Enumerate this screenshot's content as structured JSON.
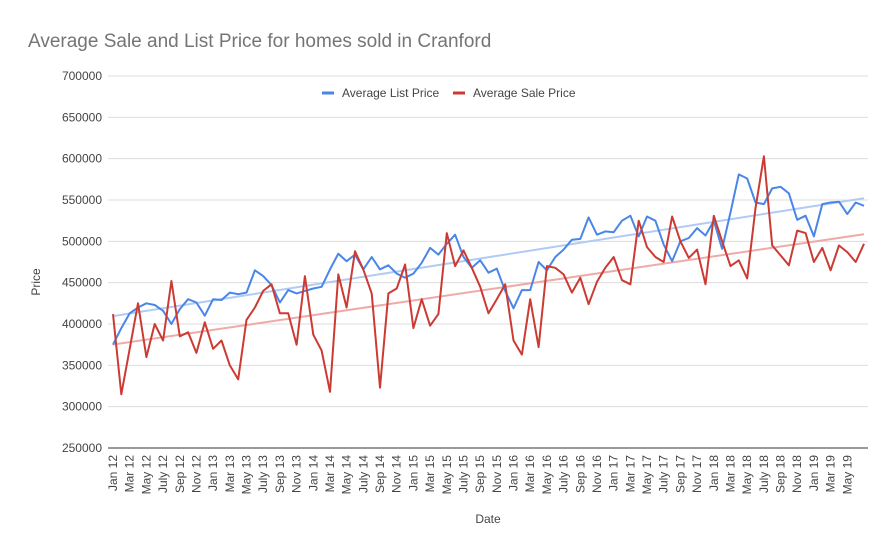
{
  "chart_data": {
    "type": "line",
    "title": "Average Sale and List Price for homes sold in Cranford",
    "x_label": "Date",
    "y_label": "Price",
    "categories": [
      "Jan 12",
      null,
      "Mar 12",
      null,
      "May 12",
      null,
      "July 12",
      null,
      "Sep 12",
      null,
      "Nov 12",
      null,
      "Jan 13",
      null,
      "Mar 13",
      null,
      "May 13",
      null,
      "July 13",
      null,
      "Sep 13",
      null,
      "Nov 13",
      null,
      "Jan 14",
      null,
      "Mar 14",
      null,
      "May 14",
      null,
      "July 14",
      null,
      "Sep 14",
      null,
      "Nov 14",
      null,
      "Jan 15",
      null,
      "Mar 15",
      null,
      "May 15",
      null,
      "July 15",
      null,
      "Sep 15",
      null,
      "Nov 15",
      null,
      "Jan 16",
      null,
      "Mar 16",
      null,
      "May 16",
      null,
      "July 16",
      null,
      "Sep 16",
      null,
      "Nov 16",
      null,
      "Jan 17",
      null,
      "Mar 17",
      null,
      "May 17",
      null,
      "July 17",
      null,
      "Sep 17",
      null,
      "Nov 17",
      null,
      "Jan 18",
      null,
      "Mar 18",
      null,
      "May 18",
      null,
      "July 18",
      null,
      "Sep 18",
      null,
      "Nov 18",
      null,
      "Jan 19",
      null,
      "Mar 19",
      null,
      "May 19",
      null,
      null
    ],
    "series": [
      {
        "name": "Average List Price",
        "color": "#4a86e8",
        "trend_color": "#b0cbf5",
        "values": [
          375000,
          395000,
          413000,
          420000,
          425000,
          423000,
          416000,
          400000,
          418000,
          430000,
          426000,
          410000,
          430000,
          429000,
          438000,
          436000,
          438000,
          465000,
          458000,
          447000,
          426000,
          441000,
          437000,
          440000,
          443000,
          445000,
          466000,
          485000,
          476000,
          484000,
          466000,
          481000,
          466000,
          471000,
          461000,
          456000,
          461000,
          474000,
          492000,
          484000,
          497000,
          508000,
          481000,
          468000,
          477000,
          462000,
          467000,
          440000,
          419000,
          441000,
          441000,
          475000,
          465000,
          481000,
          490000,
          502000,
          503000,
          529000,
          508000,
          512000,
          511000,
          525000,
          531000,
          506000,
          530000,
          525000,
          496000,
          476000,
          500000,
          504000,
          516000,
          507000,
          525000,
          491000,
          535000,
          581000,
          576000,
          547000,
          545000,
          564000,
          566000,
          558000,
          526000,
          531000,
          506000,
          545000,
          547000,
          548000,
          533000,
          547000,
          543000
        ]
      },
      {
        "name": "Average Sale Price",
        "color": "#cc3b33",
        "trend_color": "#eeaaa8",
        "values": [
          412000,
          315000,
          370000,
          425000,
          360000,
          400000,
          380000,
          452000,
          385000,
          390000,
          365000,
          402000,
          370000,
          380000,
          350000,
          333000,
          405000,
          420000,
          440000,
          448000,
          413000,
          413000,
          375000,
          458000,
          387000,
          368000,
          318000,
          460000,
          420000,
          488000,
          466000,
          437000,
          323000,
          437000,
          443000,
          472000,
          395000,
          430000,
          398000,
          412000,
          510000,
          470000,
          489000,
          468000,
          445000,
          413000,
          430000,
          448000,
          380000,
          363000,
          430000,
          372000,
          470000,
          468000,
          460000,
          438000,
          456000,
          424000,
          451000,
          468000,
          481000,
          453000,
          448000,
          525000,
          493000,
          481000,
          475000,
          530000,
          500000,
          480000,
          490000,
          448000,
          531000,
          500000,
          470000,
          477000,
          455000,
          540000,
          603000,
          495000,
          483000,
          471000,
          513000,
          510000,
          475000,
          492000,
          465000,
          495000,
          487000,
          475000,
          497000
        ]
      }
    ],
    "trendline": true,
    "ylim": [
      250000,
      700000
    ],
    "yticks": [
      250000,
      300000,
      350000,
      400000,
      450000,
      500000,
      550000,
      600000,
      650000,
      700000
    ],
    "grid": true,
    "legend": "top"
  }
}
